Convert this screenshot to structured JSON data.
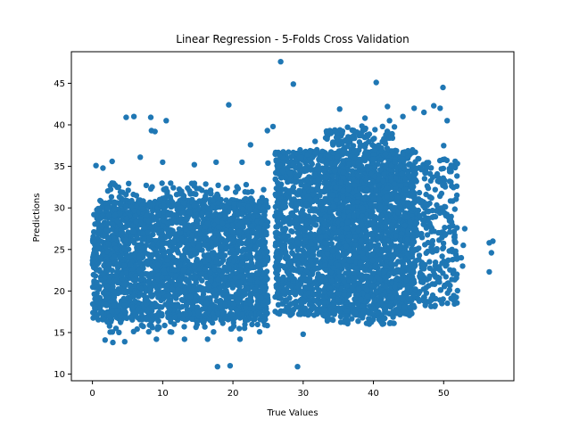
{
  "chart_data": {
    "type": "scatter",
    "title": "Linear Regression - 5-Folds Cross Validation",
    "xlabel": "True Values",
    "ylabel": "Predictions",
    "xlim": [
      -3,
      60
    ],
    "ylim": [
      9.2,
      48.8
    ],
    "xticks": [
      0,
      10,
      20,
      30,
      40,
      50
    ],
    "yticks": [
      10,
      15,
      20,
      25,
      30,
      35,
      40,
      45
    ],
    "grid": false,
    "marker_color": "#1f77b4",
    "outliers": [
      [
        26.8,
        47.6
      ],
      [
        28.6,
        44.9
      ],
      [
        40.4,
        45.1
      ],
      [
        49.9,
        44.5
      ],
      [
        19.4,
        42.4
      ],
      [
        4.8,
        40.9
      ],
      [
        5.9,
        41.0
      ],
      [
        8.3,
        40.9
      ],
      [
        10.5,
        40.5
      ],
      [
        8.4,
        39.3
      ],
      [
        8.9,
        39.2
      ],
      [
        17.8,
        10.9
      ],
      [
        19.6,
        11.0
      ],
      [
        29.2,
        10.9
      ],
      [
        56.5,
        25.8
      ],
      [
        57.0,
        26.0
      ],
      [
        56.8,
        24.6
      ],
      [
        56.5,
        22.3
      ],
      [
        53.0,
        27.5
      ],
      [
        52.8,
        25.5
      ],
      [
        52.5,
        24.0
      ],
      [
        52.7,
        23.0
      ],
      [
        51.5,
        26.5
      ],
      [
        51.0,
        28.5
      ],
      [
        50.0,
        37.5
      ],
      [
        50.5,
        40.5
      ],
      [
        49.5,
        42.0
      ],
      [
        48.6,
        42.3
      ],
      [
        47.2,
        41.5
      ],
      [
        45.8,
        42.0
      ],
      [
        44.2,
        41.0
      ],
      [
        42.0,
        42.2
      ],
      [
        42.3,
        40.5
      ],
      [
        38.8,
        40.8
      ],
      [
        35.2,
        41.9
      ],
      [
        22.5,
        37.6
      ],
      [
        24.9,
        39.3
      ],
      [
        25.7,
        39.8
      ],
      [
        31.7,
        38.0
      ],
      [
        33.4,
        38.3
      ],
      [
        0.5,
        35.1
      ],
      [
        1.5,
        34.8
      ],
      [
        2.8,
        35.6
      ],
      [
        6.8,
        36.1
      ],
      [
        10.0,
        35.5
      ],
      [
        14.5,
        35.2
      ],
      [
        17.6,
        35.5
      ],
      [
        21.3,
        35.5
      ],
      [
        25.0,
        35.4
      ],
      [
        1.8,
        14.1
      ],
      [
        2.9,
        13.8
      ],
      [
        4.6,
        13.9
      ],
      [
        9.1,
        14.2
      ],
      [
        13.1,
        14.2
      ],
      [
        16.4,
        14.2
      ],
      [
        21.0,
        14.2
      ],
      [
        30.0,
        14.8
      ],
      [
        47.2,
        18.8
      ]
    ],
    "clusters": [
      {
        "x0": 0,
        "x1": 25,
        "y0": 16.5,
        "y1": 31,
        "n": 2200
      },
      {
        "x0": 2,
        "x1": 25,
        "y0": 15,
        "y1": 33,
        "n": 600
      },
      {
        "x0": 26,
        "x1": 46,
        "y0": 17,
        "y1": 37,
        "n": 2300
      },
      {
        "x0": 33,
        "x1": 43,
        "y0": 16,
        "y1": 40,
        "n": 700
      },
      {
        "x0": 43,
        "x1": 52,
        "y0": 18,
        "y1": 36,
        "n": 400
      }
    ]
  }
}
